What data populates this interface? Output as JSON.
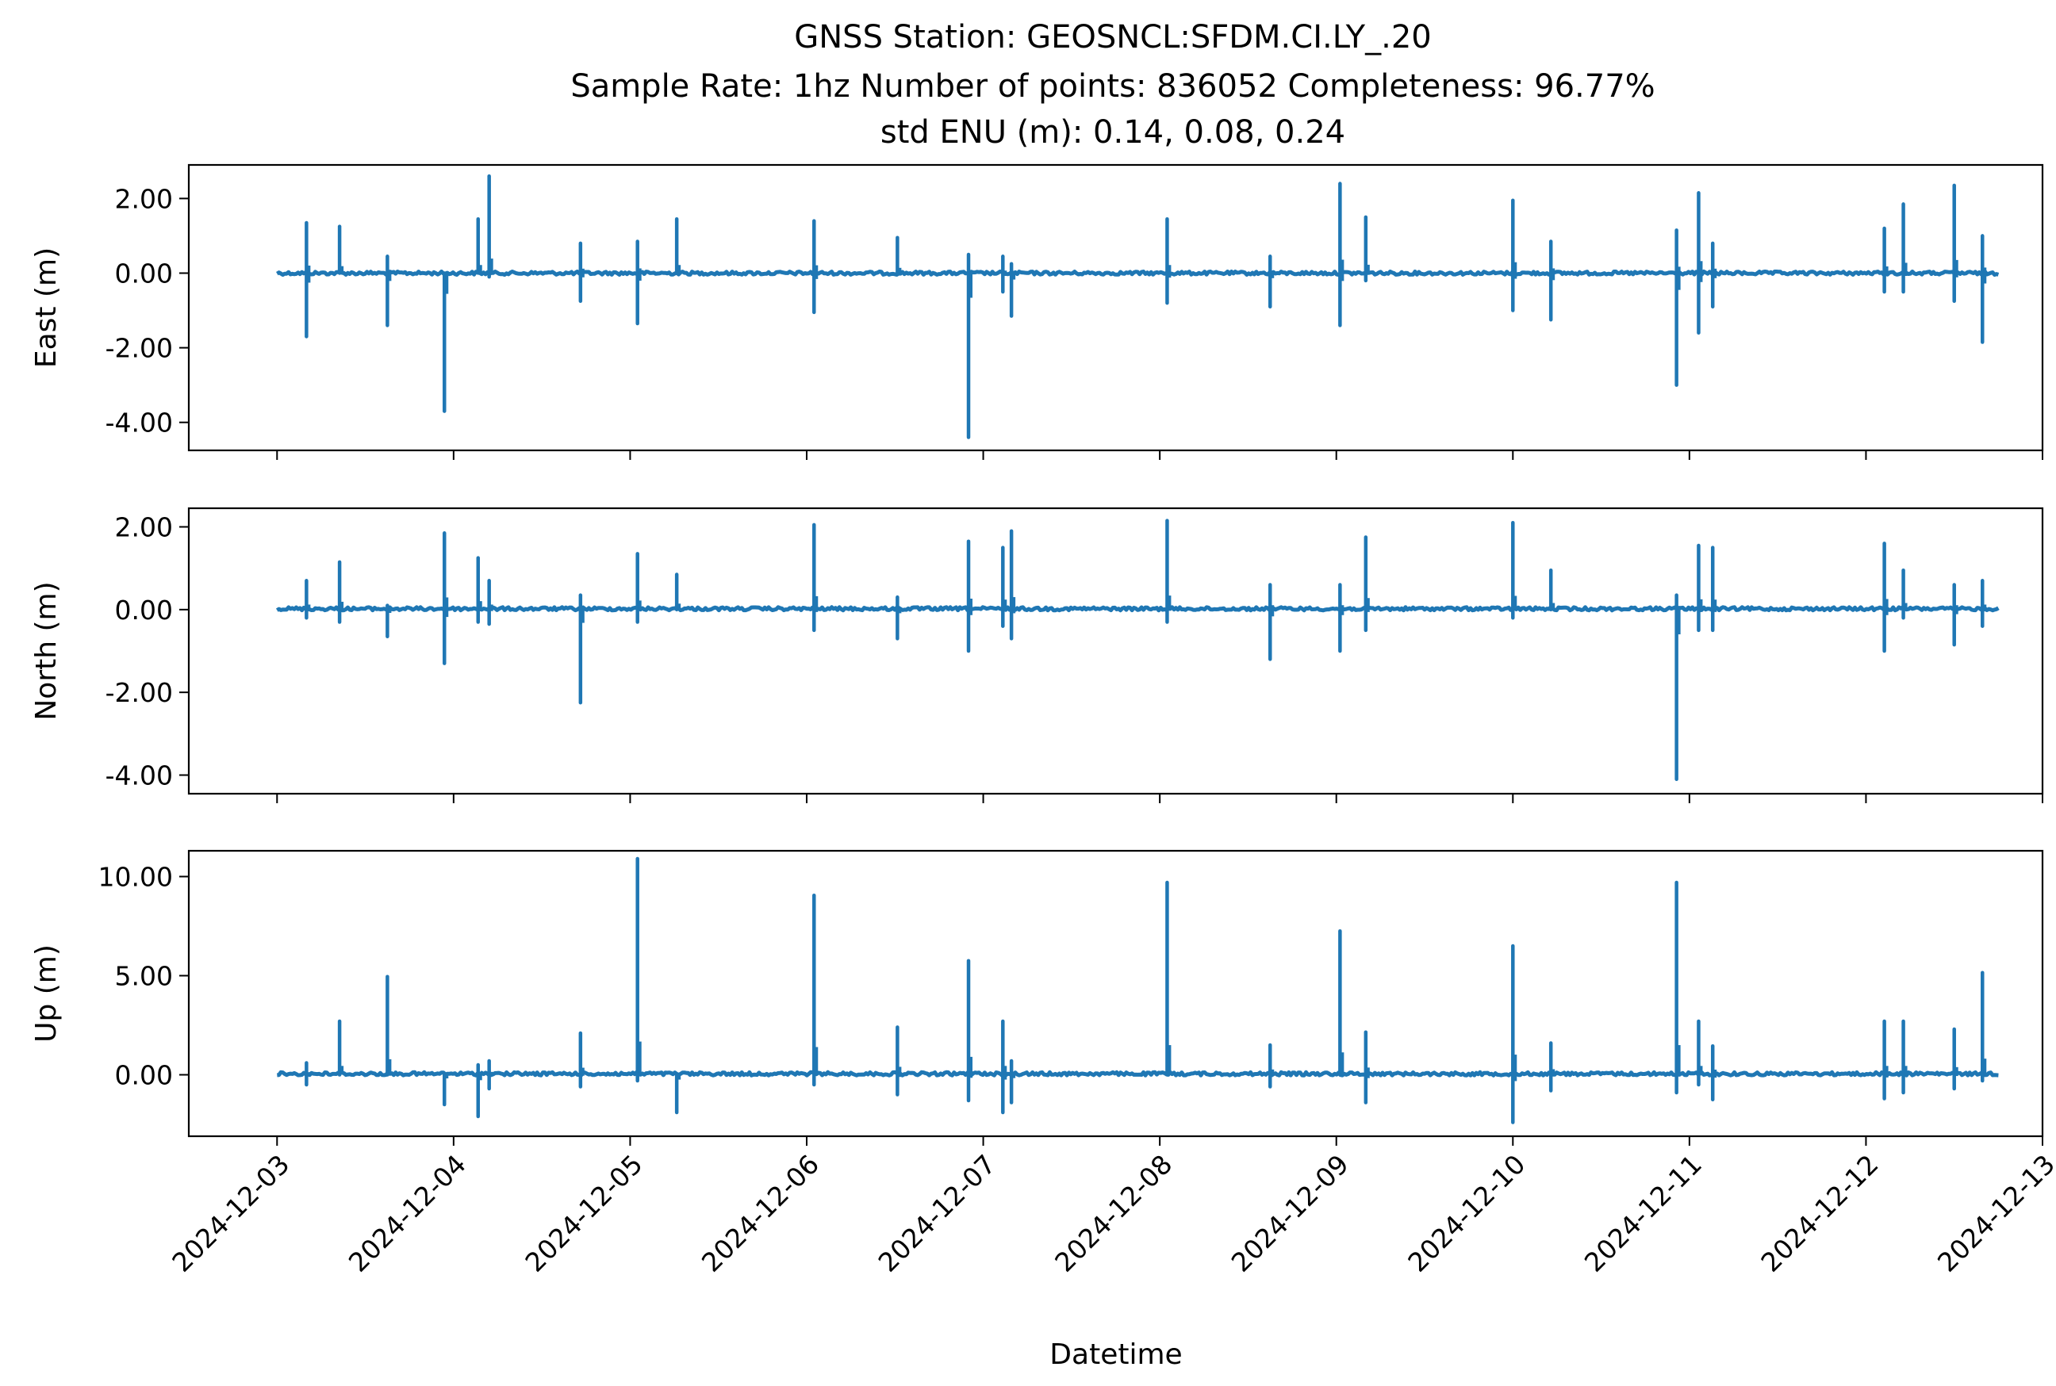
{
  "chart_data": {
    "type": "line",
    "title": [
      "GNSS Station: GEOSNCL:SFDM.CI.LY_.20",
      "Sample Rate: 1hz   Number of points: 836052    Completeness:  96.77%",
      "std ENU (m):  0.14, 0.08, 0.24"
    ],
    "xlabel": "Datetime",
    "x_ticks": [
      "2024-12-03",
      "2024-12-04",
      "2024-12-05",
      "2024-12-06",
      "2024-12-07",
      "2024-12-08",
      "2024-12-09",
      "2024-12-10",
      "2024-12-11",
      "2024-12-12",
      "2024-12-13"
    ],
    "x_range": [
      "2024-12-02T12:00",
      "2024-12-13T00:00"
    ],
    "data_range": [
      "2024-12-03T00:00",
      "2024-12-12T18:00"
    ],
    "color": "#1f77b4",
    "grid": false,
    "panels": [
      {
        "ylabel": "East (m)",
        "ylim": [
          -4.75,
          2.9
        ],
        "yticks": [
          2.0,
          0.0,
          -2.0,
          -4.0
        ],
        "ytick_labels": [
          "2.00",
          "0.00",
          "-2.00",
          "-4.00"
        ],
        "baseline": 0.0,
        "spikes": [
          [
            "2024-12-03T04:00",
            1.35,
            -1.7
          ],
          [
            "2024-12-03T08:30",
            1.25,
            0.0
          ],
          [
            "2024-12-03T15:00",
            0.45,
            -1.4
          ],
          [
            "2024-12-03T22:45",
            0.0,
            -3.7
          ],
          [
            "2024-12-04T03:20",
            1.45,
            0.0
          ],
          [
            "2024-12-04T04:50",
            2.6,
            -0.1
          ],
          [
            "2024-12-04T17:15",
            0.8,
            -0.75
          ],
          [
            "2024-12-05T01:00",
            0.85,
            -1.35
          ],
          [
            "2024-12-05T06:20",
            1.45,
            0.0
          ],
          [
            "2024-12-06T01:00",
            1.4,
            -1.05
          ],
          [
            "2024-12-06T12:20",
            0.95,
            0.0
          ],
          [
            "2024-12-06T22:00",
            0.5,
            -4.4
          ],
          [
            "2024-12-07T02:40",
            0.45,
            -0.5
          ],
          [
            "2024-12-07T03:50",
            0.25,
            -1.15
          ],
          [
            "2024-12-08T01:00",
            1.45,
            -0.8
          ],
          [
            "2024-12-08T15:00",
            0.45,
            -0.9
          ],
          [
            "2024-12-09T00:30",
            2.4,
            -1.4
          ],
          [
            "2024-12-09T04:00",
            1.5,
            -0.2
          ],
          [
            "2024-12-10T00:00",
            1.95,
            -1.0
          ],
          [
            "2024-12-10T05:10",
            0.85,
            -1.25
          ],
          [
            "2024-12-10T22:15",
            1.15,
            -3.0
          ],
          [
            "2024-12-11T01:15",
            2.15,
            -1.6
          ],
          [
            "2024-12-11T03:10",
            0.8,
            -0.9
          ],
          [
            "2024-12-12T02:30",
            1.2,
            -0.5
          ],
          [
            "2024-12-12T05:05",
            1.85,
            -0.5
          ],
          [
            "2024-12-12T12:00",
            2.35,
            -0.75
          ],
          [
            "2024-12-12T15:50",
            1.0,
            -1.85
          ]
        ]
      },
      {
        "ylabel": "North (m)",
        "ylim": [
          -4.45,
          2.45
        ],
        "yticks": [
          2.0,
          0.0,
          -2.0,
          -4.0
        ],
        "ytick_labels": [
          "2.00",
          "0.00",
          "-2.00",
          "-4.00"
        ],
        "baseline": 0.02,
        "spikes": [
          [
            "2024-12-03T04:00",
            0.7,
            -0.2
          ],
          [
            "2024-12-03T08:30",
            1.15,
            -0.3
          ],
          [
            "2024-12-03T15:00",
            0.1,
            -0.65
          ],
          [
            "2024-12-03T22:45",
            1.85,
            -1.3
          ],
          [
            "2024-12-04T03:20",
            1.25,
            -0.3
          ],
          [
            "2024-12-04T04:50",
            0.7,
            -0.35
          ],
          [
            "2024-12-04T17:15",
            0.35,
            -2.25
          ],
          [
            "2024-12-05T01:00",
            1.35,
            -0.3
          ],
          [
            "2024-12-05T06:20",
            0.85,
            0.0
          ],
          [
            "2024-12-06T01:00",
            2.05,
            -0.5
          ],
          [
            "2024-12-06T12:20",
            0.3,
            -0.7
          ],
          [
            "2024-12-06T22:00",
            1.65,
            -1.0
          ],
          [
            "2024-12-07T02:40",
            1.5,
            -0.4
          ],
          [
            "2024-12-07T03:50",
            1.9,
            -0.7
          ],
          [
            "2024-12-08T01:00",
            2.15,
            -0.3
          ],
          [
            "2024-12-08T15:00",
            0.6,
            -1.2
          ],
          [
            "2024-12-09T00:30",
            0.6,
            -1.0
          ],
          [
            "2024-12-09T04:00",
            1.75,
            -0.5
          ],
          [
            "2024-12-10T00:00",
            2.1,
            -0.2
          ],
          [
            "2024-12-10T05:10",
            0.95,
            0.0
          ],
          [
            "2024-12-10T22:15",
            0.35,
            -4.1
          ],
          [
            "2024-12-11T01:15",
            1.55,
            -0.5
          ],
          [
            "2024-12-11T03:10",
            1.5,
            -0.5
          ],
          [
            "2024-12-12T02:30",
            1.6,
            -1.0
          ],
          [
            "2024-12-12T05:05",
            0.95,
            -0.2
          ],
          [
            "2024-12-12T12:00",
            0.6,
            -0.85
          ],
          [
            "2024-12-12T15:50",
            0.7,
            -0.4
          ]
        ]
      },
      {
        "ylabel": "Up (m)",
        "ylim": [
          -3.1,
          11.3
        ],
        "yticks": [
          10.0,
          5.0,
          0.0
        ],
        "ytick_labels": [
          "10.00",
          "5.00",
          "0.00"
        ],
        "baseline": 0.05,
        "spikes": [
          [
            "2024-12-03T04:00",
            0.6,
            -0.5
          ],
          [
            "2024-12-03T08:30",
            2.7,
            0.0
          ],
          [
            "2024-12-03T15:00",
            4.95,
            0.0
          ],
          [
            "2024-12-03T22:45",
            0.0,
            -1.5
          ],
          [
            "2024-12-04T03:20",
            0.5,
            -2.1
          ],
          [
            "2024-12-04T04:50",
            0.7,
            -0.7
          ],
          [
            "2024-12-04T17:15",
            2.1,
            -0.6
          ],
          [
            "2024-12-05T01:00",
            10.9,
            -0.3
          ],
          [
            "2024-12-05T06:20",
            0.0,
            -1.9
          ],
          [
            "2024-12-06T01:00",
            9.05,
            -0.5
          ],
          [
            "2024-12-06T12:20",
            2.4,
            -1.0
          ],
          [
            "2024-12-06T22:00",
            5.75,
            -1.3
          ],
          [
            "2024-12-07T02:40",
            2.7,
            -1.9
          ],
          [
            "2024-12-07T03:50",
            0.7,
            -1.4
          ],
          [
            "2024-12-08T01:00",
            9.7,
            0.0
          ],
          [
            "2024-12-08T15:00",
            1.5,
            -0.6
          ],
          [
            "2024-12-09T00:30",
            7.25,
            0.0
          ],
          [
            "2024-12-09T04:00",
            2.15,
            -1.4
          ],
          [
            "2024-12-10T00:00",
            6.5,
            -2.4
          ],
          [
            "2024-12-10T05:10",
            1.6,
            -0.8
          ],
          [
            "2024-12-10T22:15",
            9.7,
            -0.9
          ],
          [
            "2024-12-11T01:15",
            2.7,
            -0.5
          ],
          [
            "2024-12-11T03:10",
            1.45,
            -1.25
          ],
          [
            "2024-12-12T02:30",
            2.7,
            -1.2
          ],
          [
            "2024-12-12T05:05",
            2.7,
            -0.9
          ],
          [
            "2024-12-12T12:00",
            2.3,
            -0.7
          ],
          [
            "2024-12-12T15:50",
            5.15,
            -0.3
          ]
        ]
      }
    ]
  }
}
